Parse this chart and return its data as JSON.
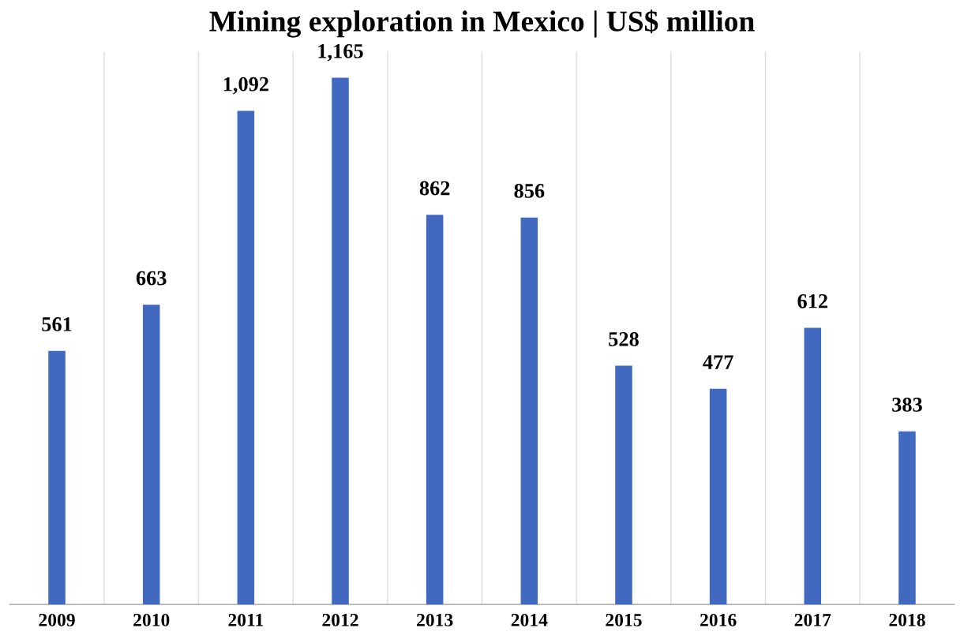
{
  "chart_data": {
    "type": "bar",
    "title": "Mining exploration in Mexico | US$ million",
    "categories": [
      "2009",
      "2010",
      "2011",
      "2012",
      "2013",
      "2014",
      "2015",
      "2016",
      "2017",
      "2018"
    ],
    "values": [
      561,
      663,
      1092,
      1165,
      862,
      856,
      528,
      477,
      612,
      383
    ],
    "value_labels": [
      "561",
      "663",
      "1,092",
      "1,165",
      "862",
      "856",
      "528",
      "477",
      "612",
      "383"
    ],
    "color": "#4169bf",
    "grid": "x"
  }
}
